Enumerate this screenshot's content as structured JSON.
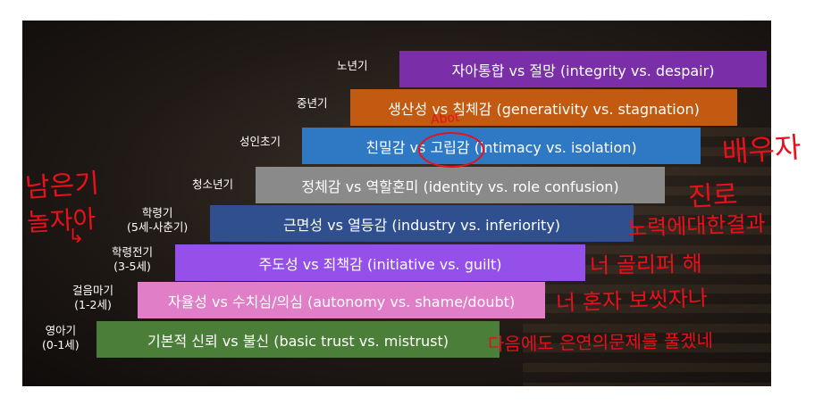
{
  "stages": [
    {
      "label_line1": "노년기",
      "label_line2": "",
      "bar_text": "자아통합 vs 절망 (integrity vs. despair)",
      "color": "#7a2fa8"
    },
    {
      "label_line1": "중년기",
      "label_line2": "",
      "bar_text": "생산성 vs 침체감 (generativity vs. stagnation)",
      "color": "#c25a12"
    },
    {
      "label_line1": "성인초기",
      "label_line2": "",
      "bar_text": "친밀감 vs 고립감 (intimacy vs. isolation)",
      "color": "#2e78c4"
    },
    {
      "label_line1": "청소년기",
      "label_line2": "",
      "bar_text": "정체감 vs 역할혼미 (identity vs. role confusion)",
      "color": "#8a8a8a"
    },
    {
      "label_line1": "학령기",
      "label_line2": "(5세-사춘기)",
      "bar_text": "근면성 vs 열등감 (industry vs. inferiority)",
      "color": "#2f4f8e"
    },
    {
      "label_line1": "학령전기",
      "label_line2": "(3-5세)",
      "bar_text": "주도성 vs 죄책감 (initiative vs. guilt)",
      "color": "#9450e8"
    },
    {
      "label_line1": "걸음마기",
      "label_line2": "(1-2세)",
      "bar_text": "자율성 vs 수치심/의심 (autonomy vs. shame/doubt)",
      "color": "#e07ec7"
    },
    {
      "label_line1": "영아기",
      "label_line2": "(0-1세)",
      "bar_text": "기본적 신뢰 vs 불신 (basic trust vs. mistrust)",
      "color": "#4b7e38"
    }
  ],
  "handwriting": {
    "left_1": "남은기",
    "left_2": "놀자아",
    "left_arrow": "↳",
    "above_word": "Abot",
    "right_1": "배우자",
    "right_2": "진로",
    "right_3": "노력에대한결과",
    "right_4": "너 골리퍼 해",
    "right_5": "너 혼자 보씻자나",
    "right_6": "다음에도 은연의문제를 풀겠네"
  }
}
